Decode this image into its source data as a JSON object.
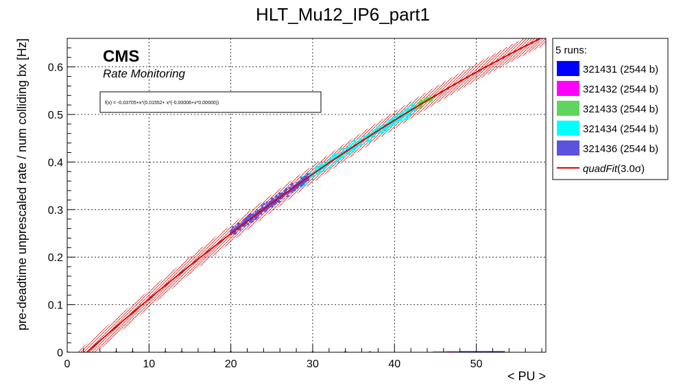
{
  "chart_data": {
    "type": "scatter",
    "title": "HLT_Mu12_IP6_part1",
    "xlabel": "< PU >",
    "ylabel": "pre-deadtime unprescaled rate / num colliding bx [Hz]",
    "xlim": [
      0,
      58.5
    ],
    "ylim": [
      0,
      0.66
    ],
    "x_ticks": [
      "0",
      "10",
      "20",
      "30",
      "40",
      "50"
    ],
    "y_ticks": [
      "0",
      "0.1",
      "0.2",
      "0.3",
      "0.4",
      "0.5",
      "0.6"
    ],
    "grid": true,
    "legend_placement": "right",
    "legend_header": "5 runs:",
    "cms_label": "CMS",
    "cms_sublabel": "Rate Monitoring",
    "fit_formula_text": "f(x) = -0.03705+x*(0.01552+ x*(-0.00006+x*0.00000))",
    "fit": {
      "name": "quadFit(3.0σ)",
      "name_main": "quadFit",
      "name_suffix": "(3.0σ)",
      "coefficients": [
        -0.03705,
        0.01552,
        -6e-05,
        0.0
      ],
      "band_sigma": 3.0,
      "band_halfwidth": 0.018,
      "color": "#e00000"
    },
    "series": [
      {
        "name": "321431 (2544 b)",
        "color": "#0000ff",
        "clusters": [],
        "zero_points": [
          48,
          49.5,
          51,
          52.5
        ]
      },
      {
        "name": "321432 (2544 b)",
        "color": "#ff00ff",
        "clusters": [],
        "zero_points": [
          46.3,
          47.0
        ]
      },
      {
        "name": "321433 (2544 b)",
        "color": "#5ed65e",
        "clusters": [
          {
            "x_range": [
              42.5,
              44.8
            ],
            "n": 45,
            "spread": 0.007
          }
        ],
        "zero_points": [
          44.8,
          45.5
        ]
      },
      {
        "name": "321434 (2544 b)",
        "color": "#00ffff",
        "clusters": [
          {
            "x_range": [
              28.5,
              42.5
            ],
            "n": 340,
            "spread": 0.01
          }
        ],
        "zero_points": []
      },
      {
        "name": "321436 (2544 b)",
        "color": "#5b52e0",
        "clusters": [
          {
            "x_range": [
              20.0,
              29.5
            ],
            "n": 360,
            "spread": 0.008
          }
        ],
        "zero_points": [
          0,
          6,
          8,
          12,
          14,
          18,
          20,
          30,
          34,
          37
        ]
      }
    ]
  }
}
